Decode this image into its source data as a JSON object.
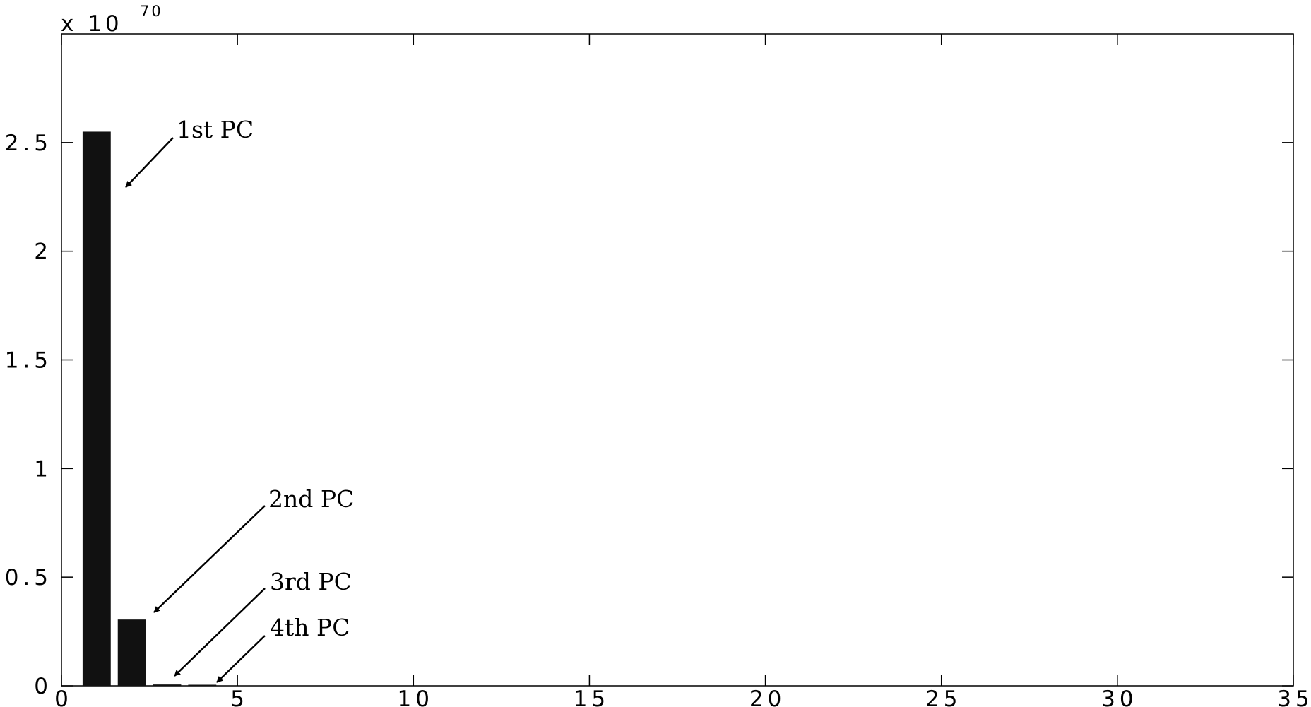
{
  "chart_data": {
    "type": "bar",
    "title": "",
    "xlabel": "",
    "ylabel": "",
    "y_multiplier": {
      "base": "x 10",
      "exponent": "70"
    },
    "x": [
      1,
      2,
      3,
      4
    ],
    "values": [
      2.55,
      0.305,
      0.006,
      0.002
    ],
    "xlim": [
      0,
      35
    ],
    "ylim": [
      0,
      3
    ],
    "xticks": [
      0,
      5,
      10,
      15,
      20,
      25,
      30,
      35
    ],
    "xtick_labels": [
      "0",
      "5",
      "10",
      "15",
      "20",
      "25",
      "30",
      "35"
    ],
    "yticks": [
      0,
      0.5,
      1,
      1.5,
      2,
      2.5
    ],
    "ytick_labels": [
      "0",
      "0.5",
      "1",
      "1.5",
      "2",
      "2.5"
    ],
    "grid": false,
    "bar_color": "#111111",
    "annotations": [
      {
        "text": "1st PC",
        "target_x": 1,
        "target_value": 2.55
      },
      {
        "text": "2nd PC",
        "target_x": 2,
        "target_value": 0.305
      },
      {
        "text": "3rd PC",
        "target_x": 3,
        "target_value": 0.006
      },
      {
        "text": "4th PC",
        "target_x": 4,
        "target_value": 0.002
      }
    ]
  }
}
